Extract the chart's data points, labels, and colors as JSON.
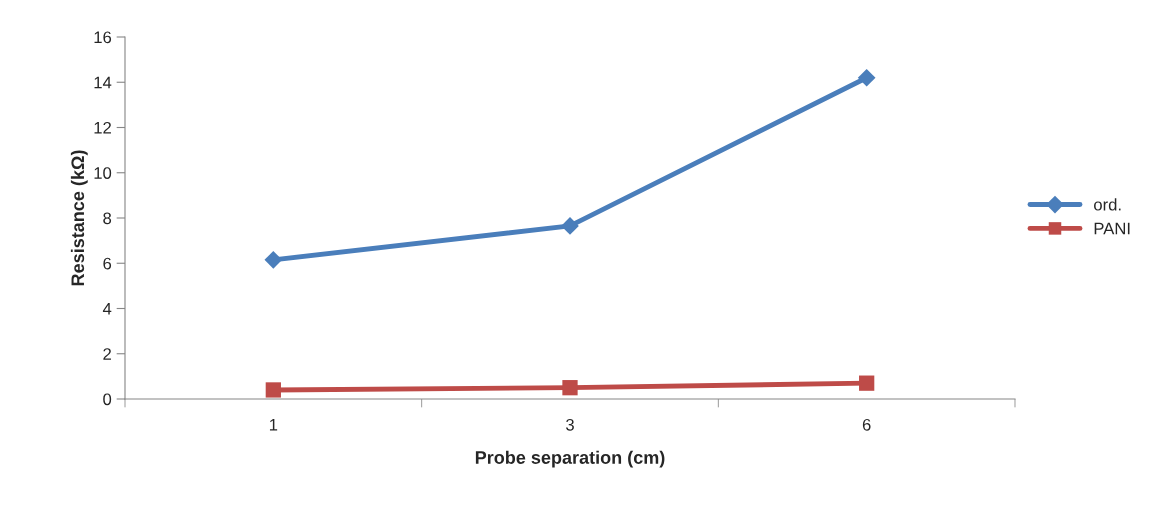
{
  "chart_data": {
    "type": "line",
    "xlabel": "Probe separation (cm)",
    "ylabel": "Resistance (kΩ)",
    "categories": [
      "1",
      "3",
      "6"
    ],
    "series": [
      {
        "name": "ord.",
        "color": "#4a7ebb",
        "marker": "diamond",
        "values": [
          6.15,
          7.65,
          14.2
        ]
      },
      {
        "name": "PANI",
        "color": "#be4b48",
        "marker": "square",
        "values": [
          0.4,
          0.5,
          0.7
        ]
      }
    ],
    "ylim": [
      0,
      16
    ],
    "yticks": [
      0,
      2,
      4,
      6,
      8,
      10,
      12,
      14,
      16
    ],
    "grid": false,
    "legend": "right",
    "line_style": "solid"
  }
}
